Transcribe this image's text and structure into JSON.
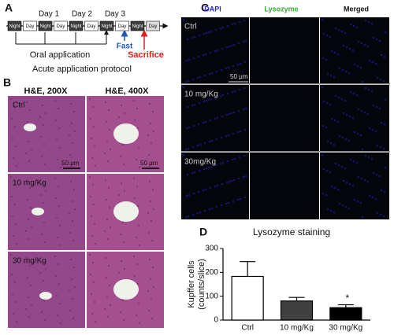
{
  "panel_labels": [
    "A",
    "B",
    "C",
    "D"
  ],
  "protocol": {
    "segments": [
      "Night",
      "Day",
      "Night",
      "Day",
      "Night",
      "Day",
      "Night",
      "Day",
      "Night",
      "Day"
    ],
    "days": [
      "Day 1",
      "Day 2",
      "Day 3"
    ],
    "oral": "Oral application",
    "fast": "Fast",
    "sacrifice": "Sacrifice",
    "caption": "Acute application protocol"
  },
  "he": {
    "columns": [
      "H&E, 200X",
      "H&E, 400X"
    ],
    "rows": [
      "Ctrl",
      "10 mg/Kg",
      "30 mg/Kg"
    ],
    "scale": "50 μm"
  },
  "fluorescence": {
    "columns": [
      "DAPI",
      "Lysozyme",
      "Merged"
    ],
    "rows": [
      "Ctrl",
      "10 mg/Kg",
      "30mg/Kg"
    ],
    "scale": "50 μm"
  },
  "chart_data": {
    "type": "bar",
    "title": "Lysozyme staining",
    "y_label": [
      "Kupffer cells",
      "(counts/slice)"
    ],
    "categories": [
      "Ctrl",
      "10 mg/Kg",
      "30 mg/Kg"
    ],
    "values": [
      183,
      80,
      52
    ],
    "errors": [
      62,
      15,
      12
    ],
    "colors": [
      "#ffffff",
      "#404040",
      "#000000"
    ],
    "significance_labels": [
      null,
      null,
      "*"
    ],
    "ylim": [
      0,
      300
    ],
    "yticks": [
      0,
      100,
      200,
      300
    ]
  }
}
